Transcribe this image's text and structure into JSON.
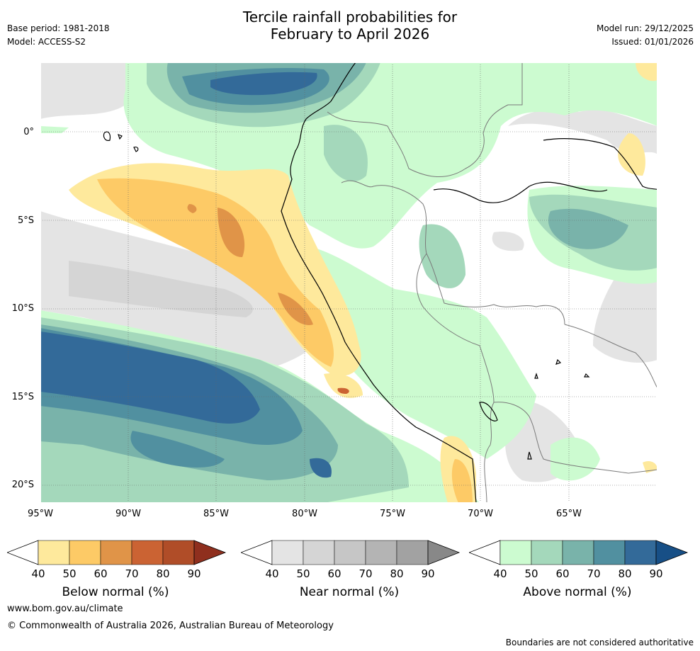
{
  "header": {
    "title_line1": "Tercile rainfall probabilities for",
    "title_line2": "February to April 2026",
    "base_period": "Base period: 1981-2018",
    "model": "Model: ACCESS-S2",
    "model_run": "Model run: 29/12/2025",
    "issued": "Issued: 01/01/2026"
  },
  "map": {
    "lat_labels": [
      "0°",
      "5°S",
      "10°S",
      "15°S",
      "20°S"
    ],
    "lon_labels": [
      "95°W",
      "90°W",
      "85°W",
      "80°W",
      "75°W",
      "70°W",
      "65°W"
    ]
  },
  "legend": {
    "ticks": [
      "40",
      "50",
      "60",
      "70",
      "80",
      "90"
    ],
    "below": {
      "label": "Below normal (%)",
      "colors": [
        "#ffffff",
        "#fee99c",
        "#fdca66",
        "#e09448",
        "#cb6333",
        "#b04d28",
        "#8f2f1e"
      ]
    },
    "near": {
      "label": "Near normal (%)",
      "colors": [
        "#ffffff",
        "#e4e4e4",
        "#d5d5d5",
        "#c6c6c6",
        "#b4b4b4",
        "#a2a2a2",
        "#888888"
      ]
    },
    "above": {
      "label": "Above normal (%)",
      "colors": [
        "#ffffff",
        "#ccfbd0",
        "#a4d8bb",
        "#79b3aa",
        "#5190a0",
        "#336a99",
        "#174f86"
      ]
    }
  },
  "footer": {
    "website": "www.bom.gov.au/climate",
    "copyright": "© Commonwealth of Australia 2026, Australian Bureau of Meteorology",
    "disclaimer": "Boundaries are not considered authoritative"
  }
}
